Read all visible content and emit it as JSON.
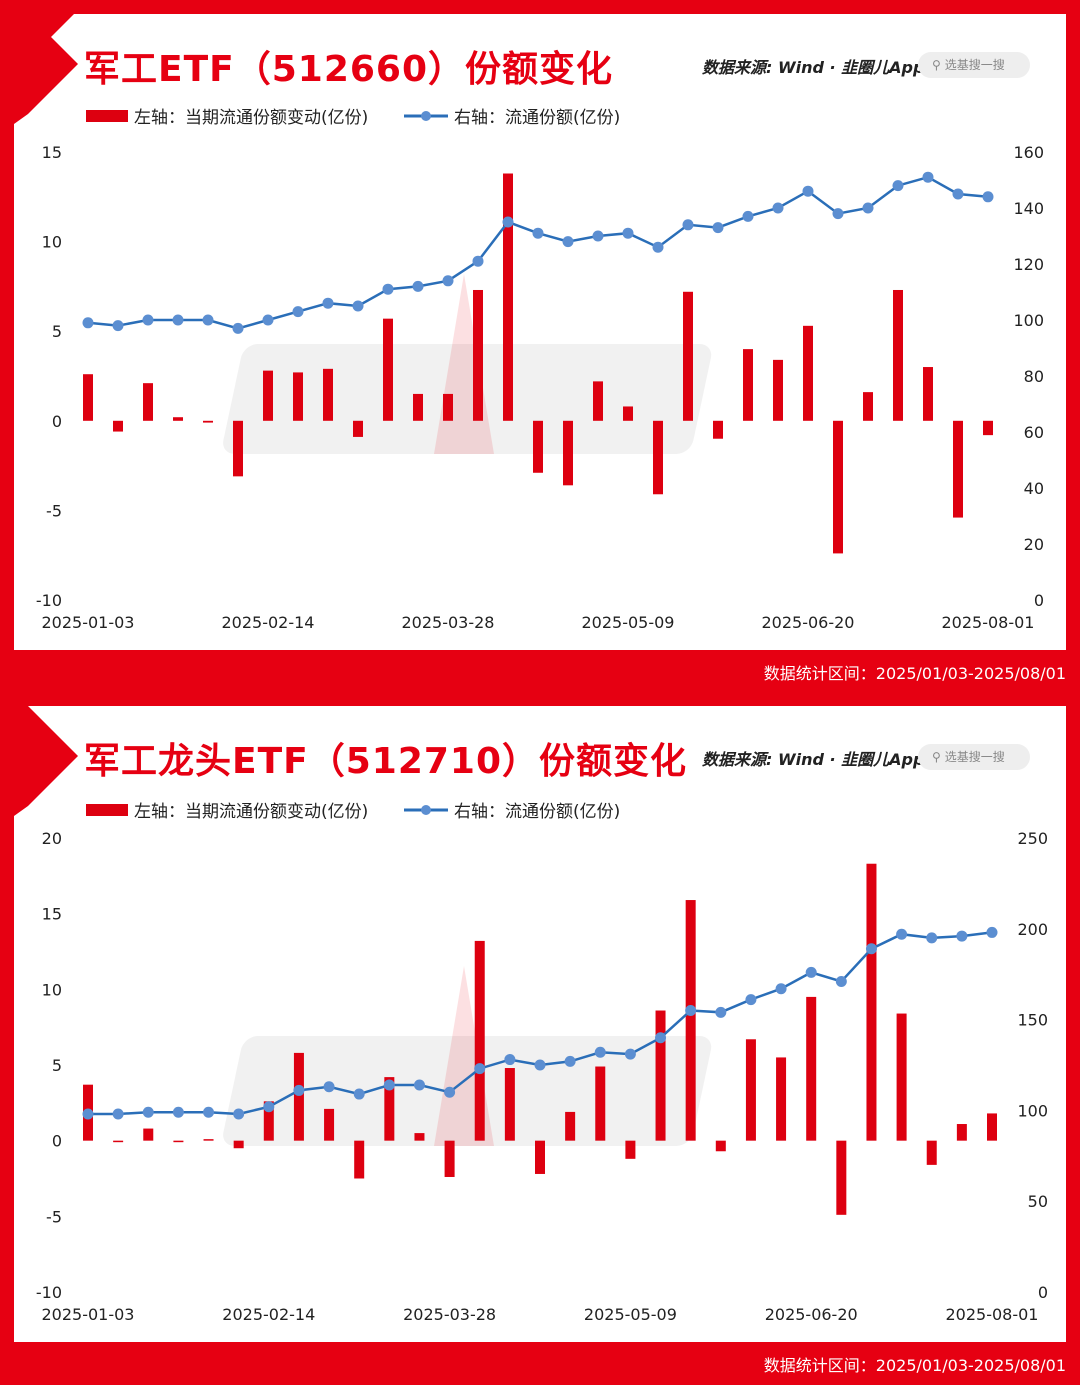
{
  "colors": {
    "brand_red": "#e60012",
    "bar": "#dd0010",
    "line": "#2a6eb8",
    "point": "#5b8ed1"
  },
  "charts": [
    {
      "title": "军工ETF（512660）份额变化",
      "source_label": "数据来源: Wind · 韭圈儿App",
      "search_placeholder": "选基搜一搜",
      "search_icon": "search-icon",
      "footer": "数据统计区间：2025/01/03-2025/08/01"
    },
    {
      "title": "军工龙头ETF（512710）份额变化",
      "source_label": "数据来源: Wind · 韭圈儿App",
      "search_placeholder": "选基搜一搜",
      "search_icon": "search-icon",
      "footer": "数据统计区间：2025/01/03-2025/08/01"
    }
  ],
  "chart_data": [
    {
      "type": "bar+line",
      "legend": {
        "bar": "左轴：当期流通份额变动(亿份)",
        "line": "右轴：流通份额(亿份)",
        "position": "top-left"
      },
      "x_tick_labels": [
        "2025-01-03",
        "2025-02-14",
        "2025-03-28",
        "2025-05-09",
        "2025-06-20",
        "2025-08-01"
      ],
      "left_axis": {
        "ylim": [
          -10,
          15
        ],
        "ticks": [
          15,
          10,
          5,
          0,
          -5,
          -10
        ]
      },
      "right_axis": {
        "ylim": [
          0,
          160
        ],
        "ticks": [
          160,
          140,
          120,
          100,
          80,
          60,
          40,
          20,
          0
        ]
      },
      "grid": false,
      "series": [
        {
          "name": "左轴：当期流通份额变动(亿份)",
          "type": "bar",
          "axis": "left",
          "values": [
            2.6,
            -0.6,
            2.1,
            0.2,
            -0.1,
            -3.1,
            2.8,
            2.7,
            2.9,
            -0.9,
            5.7,
            1.5,
            1.5,
            7.3,
            13.8,
            -2.9,
            -3.6,
            2.2,
            0.8,
            -4.1,
            7.2,
            -1.0,
            4.0,
            3.4,
            5.3,
            -7.4,
            1.6,
            7.3,
            3.0,
            -5.4,
            -0.8
          ]
        },
        {
          "name": "右轴：流通份额(亿份)",
          "type": "line",
          "axis": "right",
          "values": [
            99,
            98,
            100,
            100,
            100,
            97,
            100,
            103,
            106,
            105,
            111,
            112,
            114,
            121,
            135,
            131,
            128,
            130,
            131,
            126,
            134,
            133,
            137,
            140,
            146,
            138,
            140,
            148,
            151,
            145,
            144
          ]
        }
      ]
    },
    {
      "type": "bar+line",
      "legend": {
        "bar": "左轴：当期流通份额变动(亿份)",
        "line": "右轴：流通份额(亿份)",
        "position": "top-left"
      },
      "x_tick_labels": [
        "2025-01-03",
        "2025-02-14",
        "2025-03-28",
        "2025-05-09",
        "2025-06-20",
        "2025-08-01"
      ],
      "left_axis": {
        "ylim": [
          -10,
          20
        ],
        "ticks": [
          20,
          15,
          10,
          5,
          0,
          -5,
          -10
        ]
      },
      "right_axis": {
        "ylim": [
          0,
          250
        ],
        "ticks": [
          250,
          200,
          150,
          100,
          50,
          0
        ]
      },
      "grid": false,
      "series": [
        {
          "name": "左轴：当期流通份额变动(亿份)",
          "type": "bar",
          "axis": "left",
          "values": [
            3.7,
            -0.1,
            0.8,
            -0.1,
            0.1,
            -0.5,
            2.6,
            5.8,
            2.1,
            -2.5,
            4.2,
            0.5,
            -2.4,
            13.2,
            4.8,
            -2.2,
            1.9,
            4.9,
            -1.2,
            8.6,
            15.9,
            -0.7,
            6.7,
            5.5,
            9.5,
            -4.9,
            18.3,
            8.4,
            -1.6,
            1.1,
            1.8
          ]
        },
        {
          "name": "右轴：流通份额(亿份)",
          "type": "line",
          "axis": "right",
          "values": [
            98,
            98,
            99,
            99,
            99,
            98,
            102,
            111,
            113,
            109,
            114,
            114,
            110,
            123,
            128,
            125,
            127,
            132,
            131,
            140,
            155,
            154,
            161,
            167,
            176,
            171,
            189,
            197,
            195,
            196,
            198
          ]
        }
      ]
    }
  ]
}
